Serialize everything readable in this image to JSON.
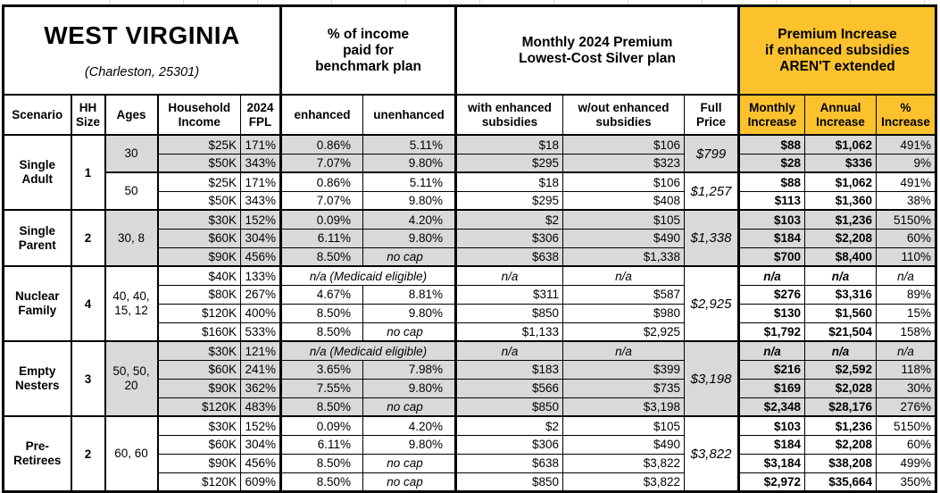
{
  "title": "WEST VIRGINIA",
  "subtitle": "(Charleston, 25301)",
  "colors": {
    "accent_gold": "#fcc22d",
    "band_gray": "#d9d9d9",
    "grid_black": "#000000",
    "background": "#ffffff"
  },
  "header": {
    "sections": {
      "benchmark": "% of income\npaid for\nbenchmark plan",
      "premium": "Monthly 2024 Premium\nLowest-Cost Silver plan",
      "increase": "Premium Increase\nif enhanced subsidies\nAREN'T extended"
    },
    "columns": {
      "scenario": "Scenario",
      "hh_size": "HH\nSize",
      "ages": "Ages",
      "income": "Household\nIncome",
      "fpl": "2024\nFPL",
      "enhanced": "enhanced",
      "unenhanced": "unenhanced",
      "with_sub": "with enhanced\nsubsidies",
      "wout_sub": "w/out enhanced\nsubsidies",
      "full_price": "Full\nPrice",
      "monthly": "Monthly\nIncrease",
      "annual": "Annual\nIncrease",
      "pct": "%\nIncrease"
    }
  },
  "groups": [
    {
      "scenario": "Single Adult",
      "hh_size": "1",
      "bands": [
        {
          "ages": "30",
          "shaded": true,
          "full_price": "$799",
          "rows": [
            {
              "income": "$25K",
              "fpl": "171%",
              "enhanced": "0.86%",
              "unenhanced": "5.11%",
              "with_sub": "$18",
              "wout_sub": "$106",
              "monthly": "$88",
              "annual": "$1,062",
              "pct": "491%"
            },
            {
              "income": "$50K",
              "fpl": "343%",
              "enhanced": "7.07%",
              "unenhanced": "9.80%",
              "with_sub": "$295",
              "wout_sub": "$323",
              "monthly": "$28",
              "annual": "$336",
              "pct": "9%"
            }
          ]
        },
        {
          "ages": "50",
          "shaded": false,
          "full_price": "$1,257",
          "rows": [
            {
              "income": "$25K",
              "fpl": "171%",
              "enhanced": "0.86%",
              "unenhanced": "5.11%",
              "with_sub": "$18",
              "wout_sub": "$106",
              "monthly": "$88",
              "annual": "$1,062",
              "pct": "491%"
            },
            {
              "income": "$50K",
              "fpl": "343%",
              "enhanced": "7.07%",
              "unenhanced": "9.80%",
              "with_sub": "$295",
              "wout_sub": "$408",
              "monthly": "$113",
              "annual": "$1,360",
              "pct": "38%"
            }
          ]
        }
      ]
    },
    {
      "scenario": "Single Parent",
      "hh_size": "2",
      "bands": [
        {
          "ages": "30, 8",
          "shaded": true,
          "full_price": "$1,338",
          "rows": [
            {
              "income": "$30K",
              "fpl": "152%",
              "enhanced": "0.09%",
              "unenhanced": "4.20%",
              "with_sub": "$2",
              "wout_sub": "$105",
              "monthly": "$103",
              "annual": "$1,236",
              "pct": "5150%"
            },
            {
              "income": "$60K",
              "fpl": "304%",
              "enhanced": "6.11%",
              "unenhanced": "9.80%",
              "with_sub": "$306",
              "wout_sub": "$490",
              "monthly": "$184",
              "annual": "$2,208",
              "pct": "60%"
            },
            {
              "income": "$90K",
              "fpl": "456%",
              "enhanced": "8.50%",
              "unenhanced": "no cap",
              "with_sub": "$638",
              "wout_sub": "$1,338",
              "monthly": "$700",
              "annual": "$8,400",
              "pct": "110%"
            }
          ]
        }
      ]
    },
    {
      "scenario": "Nuclear Family",
      "hh_size": "4",
      "bands": [
        {
          "ages": "40, 40, 15, 12",
          "shaded": false,
          "full_price": "$2,925",
          "rows": [
            {
              "income": "$40K",
              "fpl": "133%",
              "medicaid": "n/a (Medicaid eligible)",
              "with_sub": "n/a",
              "wout_sub": "n/a",
              "monthly": "n/a",
              "annual": "n/a",
              "pct": "n/a"
            },
            {
              "income": "$80K",
              "fpl": "267%",
              "enhanced": "4.67%",
              "unenhanced": "8.81%",
              "with_sub": "$311",
              "wout_sub": "$587",
              "monthly": "$276",
              "annual": "$3,316",
              "pct": "89%"
            },
            {
              "income": "$120K",
              "fpl": "400%",
              "enhanced": "8.50%",
              "unenhanced": "9.80%",
              "with_sub": "$850",
              "wout_sub": "$980",
              "monthly": "$130",
              "annual": "$1,560",
              "pct": "15%"
            },
            {
              "income": "$160K",
              "fpl": "533%",
              "enhanced": "8.50%",
              "unenhanced": "no cap",
              "with_sub": "$1,133",
              "wout_sub": "$2,925",
              "monthly": "$1,792",
              "annual": "$21,504",
              "pct": "158%"
            }
          ]
        }
      ]
    },
    {
      "scenario": "Empty Nesters",
      "hh_size": "3",
      "bands": [
        {
          "ages": "50, 50, 20",
          "shaded": true,
          "full_price": "$3,198",
          "rows": [
            {
              "income": "$30K",
              "fpl": "121%",
              "medicaid": "n/a (Medicaid eligible)",
              "with_sub": "n/a",
              "wout_sub": "n/a",
              "monthly": "n/a",
              "annual": "n/a",
              "pct": "n/a"
            },
            {
              "income": "$60K",
              "fpl": "241%",
              "enhanced": "3.65%",
              "unenhanced": "7.98%",
              "with_sub": "$183",
              "wout_sub": "$399",
              "monthly": "$216",
              "annual": "$2,592",
              "pct": "118%"
            },
            {
              "income": "$90K",
              "fpl": "362%",
              "enhanced": "7.55%",
              "unenhanced": "9.80%",
              "with_sub": "$566",
              "wout_sub": "$735",
              "monthly": "$169",
              "annual": "$2,028",
              "pct": "30%"
            },
            {
              "income": "$120K",
              "fpl": "483%",
              "enhanced": "8.50%",
              "unenhanced": "no cap",
              "with_sub": "$850",
              "wout_sub": "$3,198",
              "monthly": "$2,348",
              "annual": "$28,176",
              "pct": "276%"
            }
          ]
        }
      ]
    },
    {
      "scenario": "Pre-Retirees",
      "hh_size": "2",
      "bands": [
        {
          "ages": "60, 60",
          "shaded": false,
          "full_price": "$3,822",
          "rows": [
            {
              "income": "$30K",
              "fpl": "152%",
              "enhanced": "0.09%",
              "unenhanced": "4.20%",
              "with_sub": "$2",
              "wout_sub": "$105",
              "monthly": "$103",
              "annual": "$1,236",
              "pct": "5150%"
            },
            {
              "income": "$60K",
              "fpl": "304%",
              "enhanced": "6.11%",
              "unenhanced": "9.80%",
              "with_sub": "$306",
              "wout_sub": "$490",
              "monthly": "$184",
              "annual": "$2,208",
              "pct": "60%"
            },
            {
              "income": "$90K",
              "fpl": "456%",
              "enhanced": "8.50%",
              "unenhanced": "no cap",
              "with_sub": "$638",
              "wout_sub": "$3,822",
              "monthly": "$3,184",
              "annual": "$38,208",
              "pct": "499%"
            },
            {
              "income": "$120K",
              "fpl": "609%",
              "enhanced": "8.50%",
              "unenhanced": "no cap",
              "with_sub": "$850",
              "wout_sub": "$3,822",
              "monthly": "$2,972",
              "annual": "$35,664",
              "pct": "350%"
            }
          ]
        }
      ]
    }
  ]
}
